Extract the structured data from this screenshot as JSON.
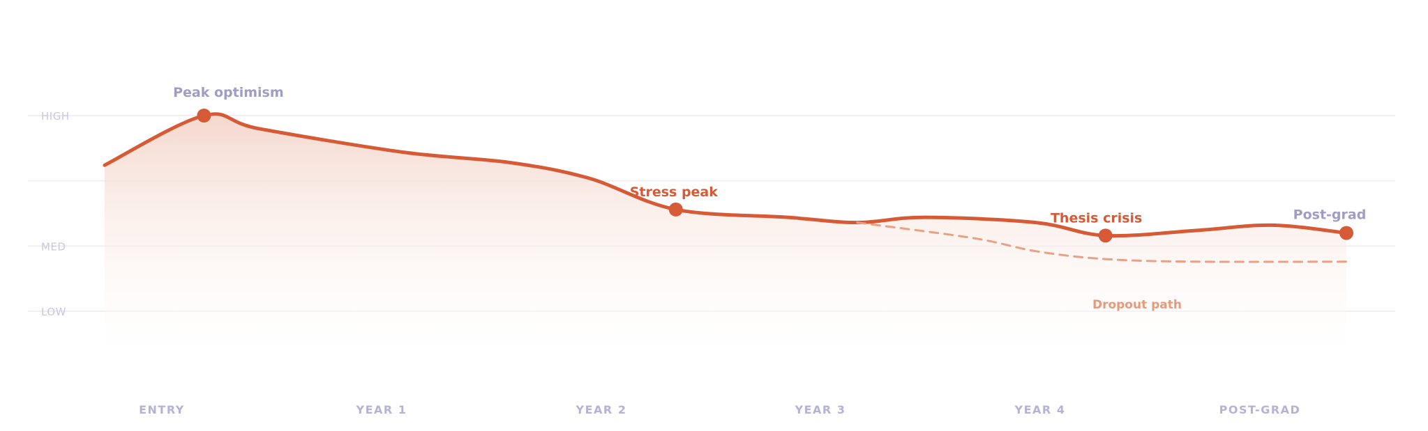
{
  "chart_data": {
    "type": "line",
    "title": "",
    "xlabel": "",
    "ylabel": "",
    "y_tick_labels": [
      "HIGH",
      "MED",
      "LOW"
    ],
    "y_tick_values": [
      100,
      50,
      25
    ],
    "ylim": [
      0,
      110
    ],
    "grid": true,
    "categories": [
      "ENTRY",
      "YEAR 1",
      "YEAR 2",
      "YEAR 3",
      "YEAR 4",
      "POST-GRAD"
    ],
    "series": [
      {
        "color": "#d65a35",
        "style": "solid",
        "area_fill": true,
        "x": [
          0,
          0.4,
          0.62,
          1.2,
          1.63,
          1.95,
          2.3,
          2.75,
          3.03,
          3.3,
          3.75,
          4.03,
          4.4,
          4.7,
          5.0
        ],
        "values": [
          81,
          100,
          95,
          86,
          82,
          76,
          64,
          61,
          59,
          61,
          59,
          54,
          56,
          58,
          55
        ]
      },
      {
        "color": "#e9a184",
        "style": "dashed",
        "x": [
          3.03,
          3.5,
          3.75,
          4.03,
          4.4,
          5.0
        ],
        "values": [
          59,
          53,
          48,
          45,
          44,
          44
        ]
      }
    ],
    "markers": [
      {
        "x": 0.4,
        "value": 100
      },
      {
        "x": 2.3,
        "value": 64
      },
      {
        "x": 4.03,
        "value": 54
      },
      {
        "x": 5.0,
        "value": 55
      }
    ],
    "annotations": [
      {
        "text": "Peak optimism",
        "x": 0.4,
        "value": 100,
        "tone": "muted"
      },
      {
        "text": "Stress peak",
        "x": 2.3,
        "value": 64,
        "tone": "accent"
      },
      {
        "text": "Thesis crisis",
        "x": 4.03,
        "value": 54,
        "tone": "accent"
      },
      {
        "text": "Post-grad",
        "x": 5.0,
        "value": 55,
        "tone": "muted"
      },
      {
        "text": "Dropout path",
        "x": 4.4,
        "value": 44,
        "tone": "soft"
      }
    ],
    "colors": {
      "line": "#d65a35",
      "area_top": "#f4d6cb",
      "dashed": "#e9a184",
      "grid": "#efeff3"
    }
  }
}
